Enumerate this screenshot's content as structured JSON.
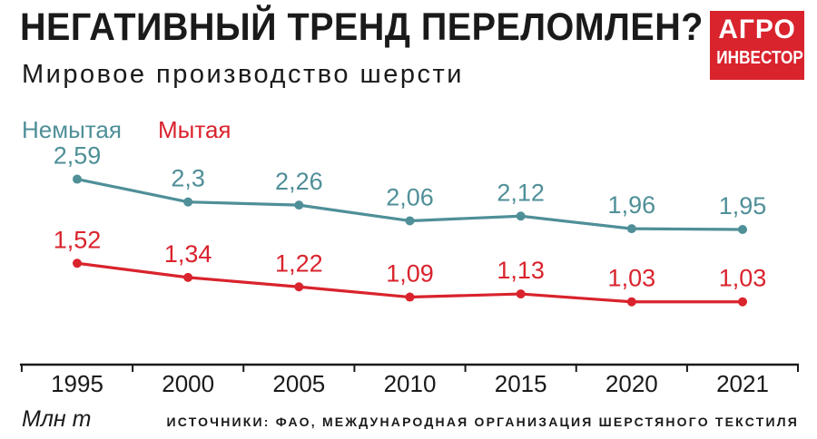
{
  "title": "НЕГАТИВНЫЙ ТРЕНД ПЕРЕЛОМЛЕН?",
  "subtitle": "Мировое производство шерсти",
  "logo": {
    "line1": "АГРО",
    "line2": "ИНВЕСТОР"
  },
  "unit": "Млн т",
  "source": "ИСТОЧНИКИ: ФАО, МЕЖДУНАРОДНАЯ ОРГАНИЗАЦИЯ ШЕРСТЯНОГО ТЕКСТИЛЯ",
  "colors": {
    "unwashed": "#4f8f98",
    "washed": "#d9232d",
    "axis": "#1a1a1a"
  },
  "chart_data": {
    "type": "line",
    "title": "",
    "xlabel": "",
    "ylabel": "Млн т",
    "categories": [
      "1995",
      "2000",
      "2005",
      "2010",
      "2015",
      "2020",
      "2021"
    ],
    "ylim": [
      0.6,
      2.85
    ],
    "grid": false,
    "legend": "top-left",
    "series": [
      {
        "name": "Немытая",
        "color": "#4f8f98",
        "values": [
          2.59,
          2.3,
          2.26,
          2.06,
          2.12,
          1.96,
          1.95
        ],
        "labels": [
          "2,59",
          "2,3",
          "2,26",
          "2,06",
          "2,12",
          "1,96",
          "1,95"
        ]
      },
      {
        "name": "Мытая",
        "color": "#d9232d",
        "values": [
          1.52,
          1.34,
          1.22,
          1.09,
          1.13,
          1.03,
          1.03
        ],
        "labels": [
          "1,52",
          "1,34",
          "1,22",
          "1,09",
          "1,13",
          "1,03",
          "1,03"
        ]
      }
    ]
  }
}
